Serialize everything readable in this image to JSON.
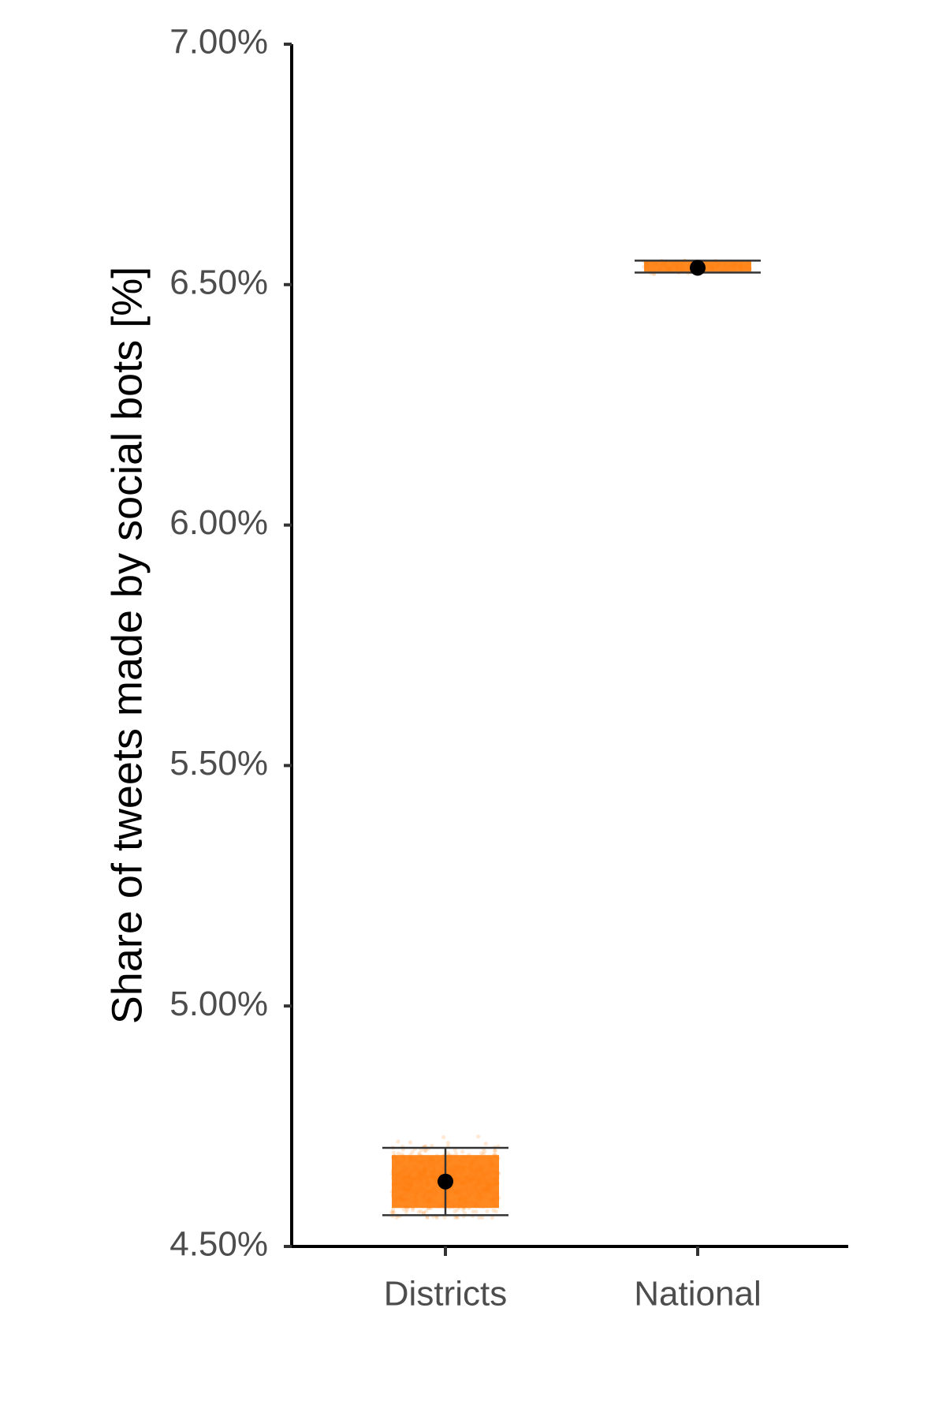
{
  "chart_data": {
    "type": "scatter",
    "title": "",
    "xlabel": "",
    "ylabel": "Share of tweets made by social bots [%]",
    "categories": [
      "Districts",
      "National"
    ],
    "ylim": [
      4.5,
      7.0
    ],
    "yticks": [
      4.5,
      5.0,
      5.5,
      6.0,
      6.5,
      7.0
    ],
    "ytick_labels": [
      "4.50%",
      "5.00%",
      "5.50%",
      "6.00%",
      "6.50%",
      "7.00%"
    ],
    "grid": false,
    "legend": "none",
    "series": [
      {
        "category": "Districts",
        "mean": 4.635,
        "ci_low": 4.565,
        "ci_high": 4.705,
        "jitter_range": [
          4.58,
          4.69
        ],
        "jitter_spread": [
          4.56,
          4.75
        ]
      },
      {
        "category": "National",
        "mean": 6.535,
        "ci_low": 6.525,
        "ci_high": 6.55,
        "jitter_range": [
          6.527,
          6.55
        ],
        "jitter_spread": [
          6.52,
          6.555
        ]
      }
    ],
    "colors": {
      "jitter": "#ff7f0e",
      "mean_point": "#000000",
      "error_bar": "#333333"
    }
  }
}
